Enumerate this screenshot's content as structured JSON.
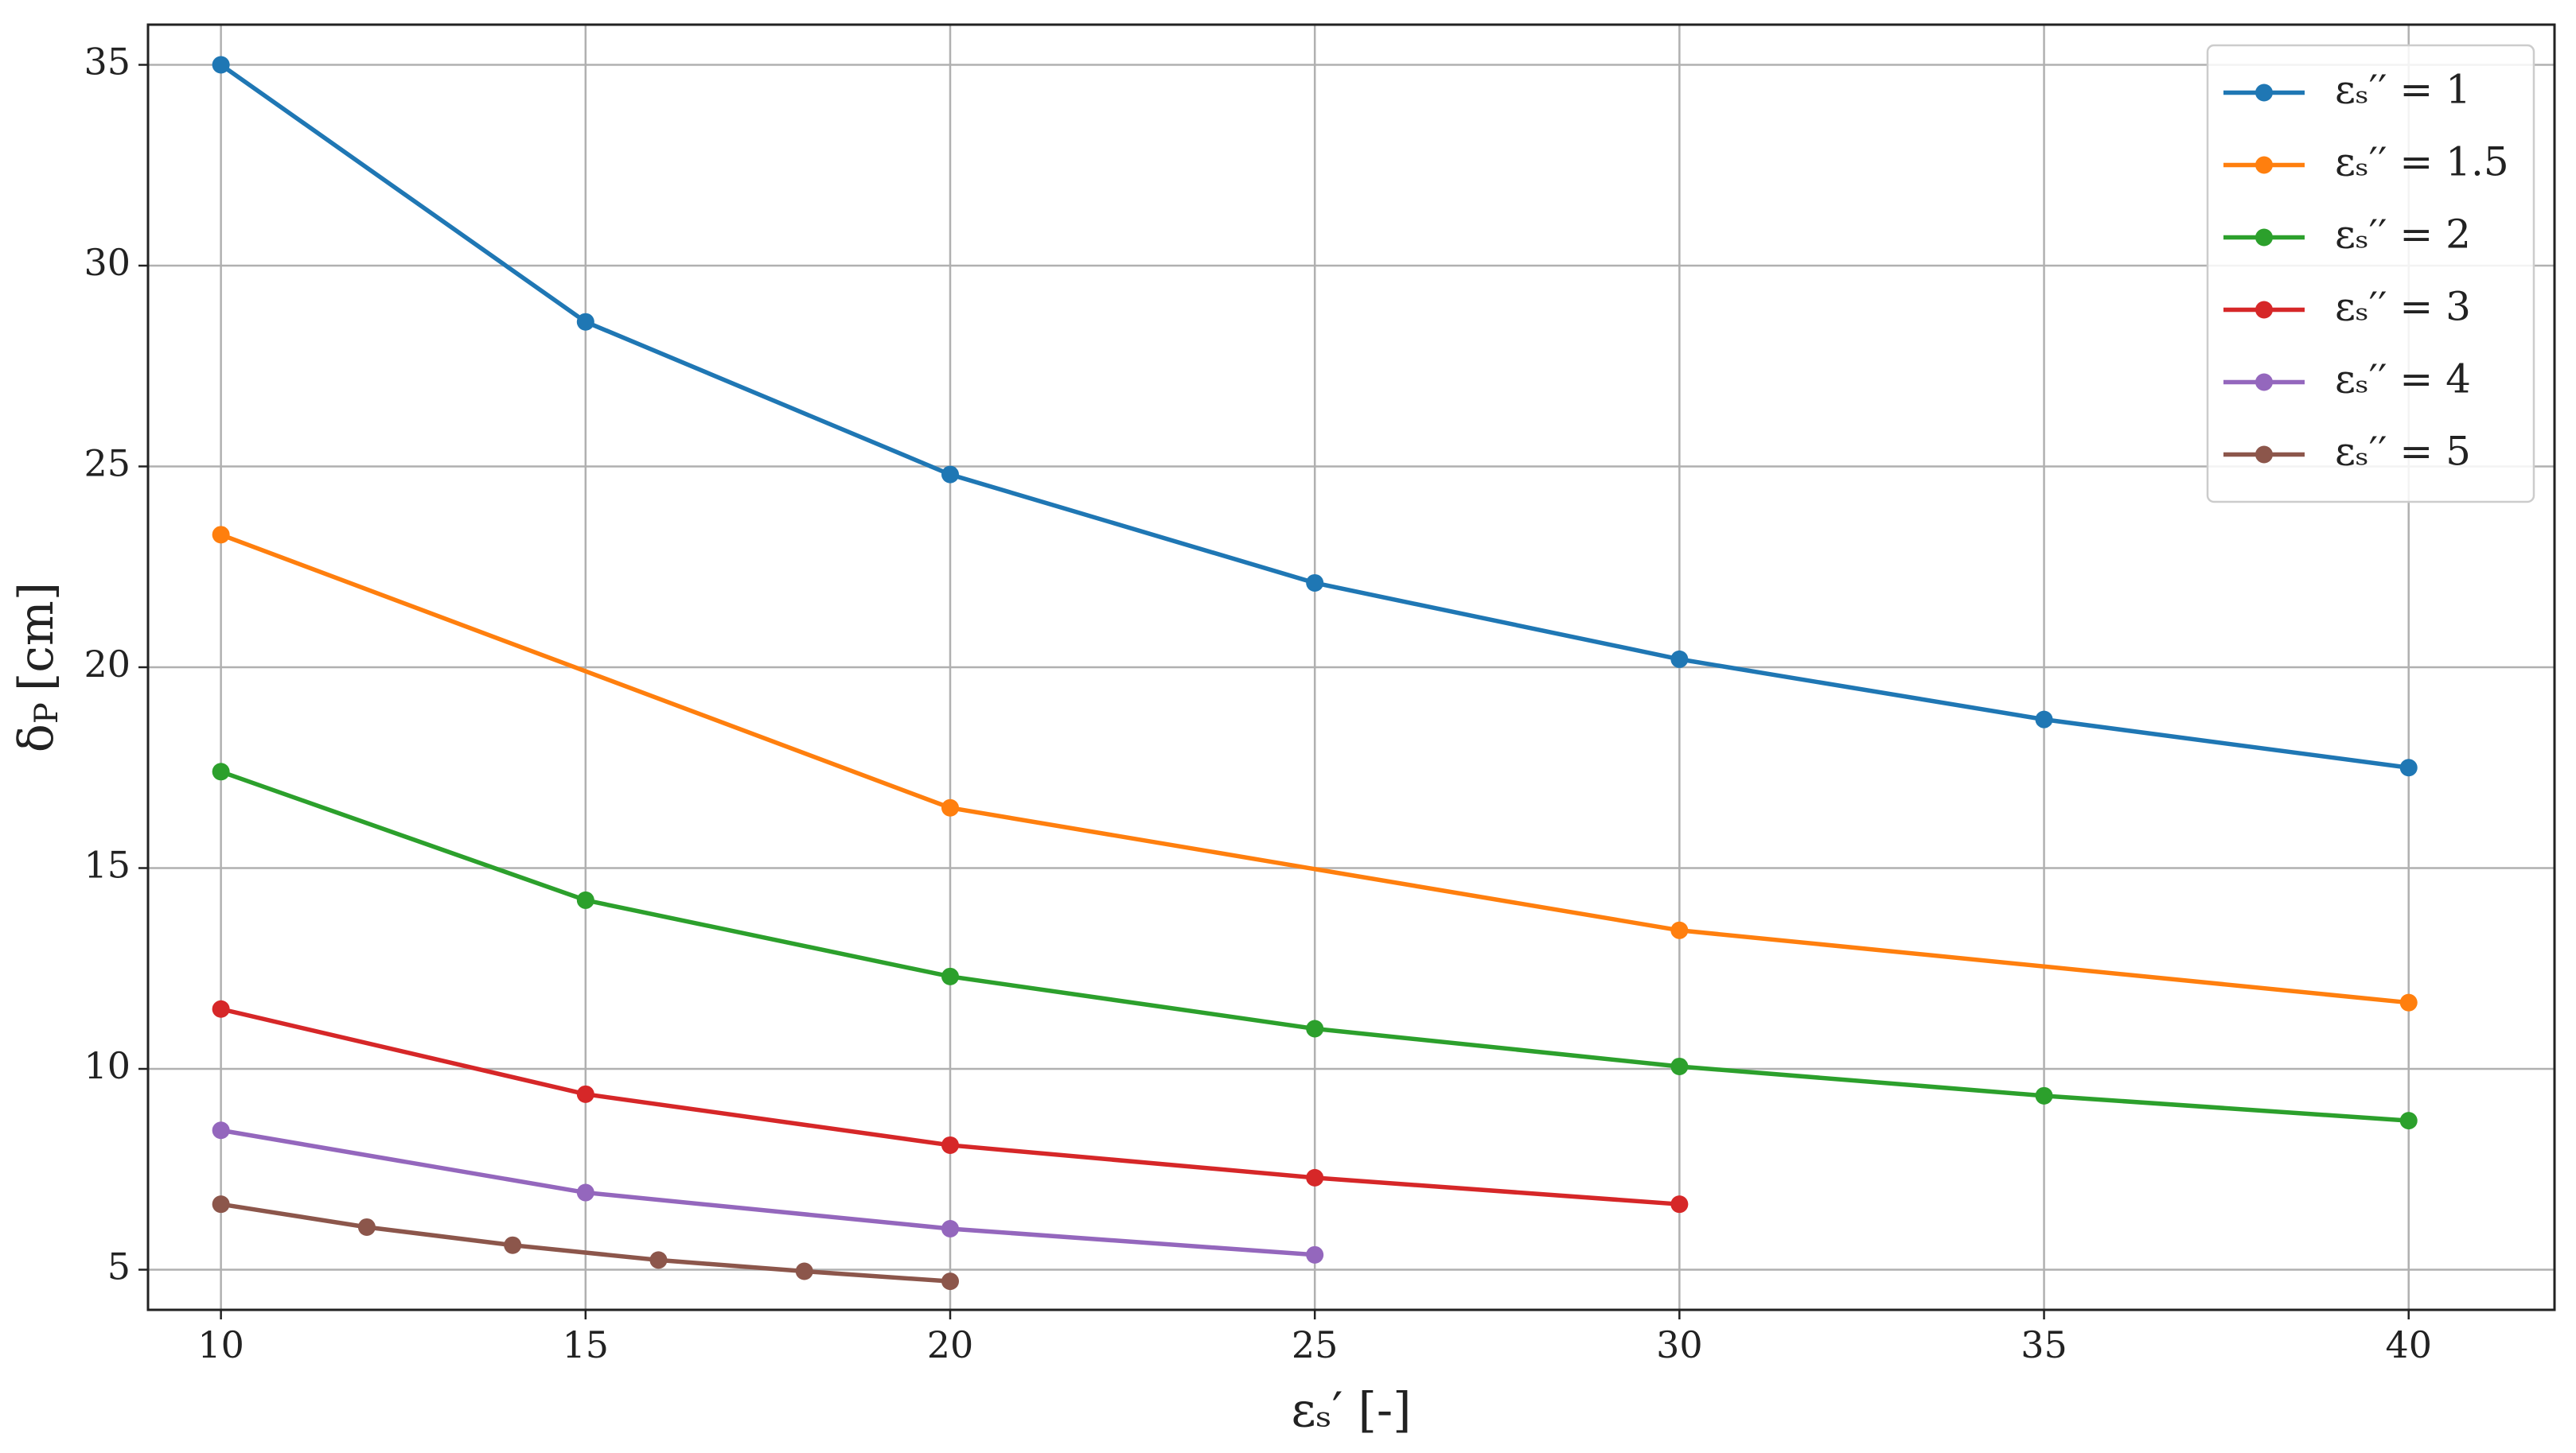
{
  "chart_data": {
    "type": "line",
    "x_label": "εₛ′ [-]",
    "y_label": {
      "symbol": "δ",
      "subscript": "P",
      "unit": "[cm]"
    },
    "xlim": [
      9,
      42
    ],
    "xticks": [
      10,
      15,
      20,
      25,
      30,
      35,
      40
    ],
    "ylim": [
      4,
      36
    ],
    "yticks": [
      5,
      10,
      15,
      20,
      25,
      30,
      35
    ],
    "grid": true,
    "legend": "upper right",
    "series": [
      {
        "name": "εₛ′′ = 1",
        "color": "#1f77b4",
        "x": [
          10,
          15,
          20,
          25,
          30,
          35,
          40
        ],
        "values": [
          35,
          28.6,
          24.8,
          22.1,
          20.2,
          18.7,
          17.5
        ]
      },
      {
        "name": "εₛ′′ = 1.5",
        "color": "#ff7f0e",
        "x": [
          10,
          20,
          30,
          40
        ],
        "values": [
          23.3,
          16.5,
          13.45,
          11.65
        ]
      },
      {
        "name": "εₛ′′ = 2",
        "color": "#2ca02c",
        "x": [
          10,
          15,
          20,
          25,
          30,
          35,
          40
        ],
        "values": [
          17.4,
          14.2,
          12.3,
          11.0,
          10.06,
          9.33,
          8.71
        ]
      },
      {
        "name": "εₛ′′ = 3",
        "color": "#d62728",
        "x": [
          10,
          15,
          20,
          25,
          30
        ],
        "values": [
          11.49,
          9.37,
          8.1,
          7.29,
          6.63
        ]
      },
      {
        "name": "εₛ′′ = 4",
        "color": "#9467bd",
        "x": [
          10,
          15,
          20,
          25
        ],
        "values": [
          8.47,
          6.92,
          6.02,
          5.37
        ]
      },
      {
        "name": "εₛ′′ = 5",
        "color": "#8c564b",
        "x": [
          10,
          12,
          14,
          16,
          18,
          20
        ],
        "values": [
          6.63,
          6.06,
          5.61,
          5.24,
          4.96,
          4.71
        ]
      }
    ]
  }
}
